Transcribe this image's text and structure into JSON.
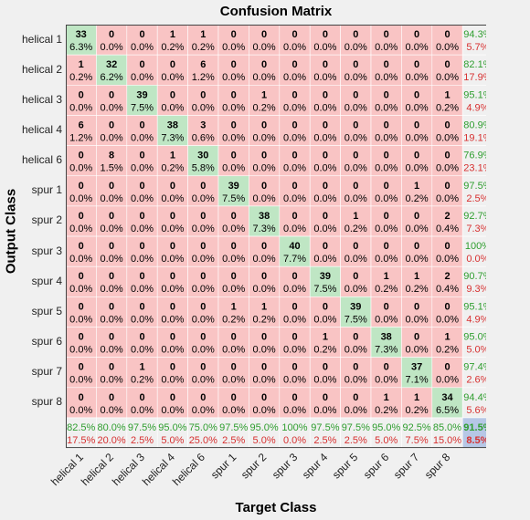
{
  "chart_data": {
    "type": "heatmap",
    "title": "Confusion Matrix",
    "xlabel": "Target Class",
    "ylabel": "Output Class",
    "classes": [
      "helical 1",
      "helical 2",
      "helical 3",
      "helical 4",
      "helical 6",
      "spur 1",
      "spur 2",
      "spur 3",
      "spur 4",
      "spur 5",
      "spur 6",
      "spur 7",
      "spur 8"
    ],
    "counts": [
      [
        33,
        0,
        0,
        1,
        1,
        0,
        0,
        0,
        0,
        0,
        0,
        0,
        0
      ],
      [
        1,
        32,
        0,
        0,
        6,
        0,
        0,
        0,
        0,
        0,
        0,
        0,
        0
      ],
      [
        0,
        0,
        39,
        0,
        0,
        0,
        1,
        0,
        0,
        0,
        0,
        0,
        1
      ],
      [
        6,
        0,
        0,
        38,
        3,
        0,
        0,
        0,
        0,
        0,
        0,
        0,
        0
      ],
      [
        0,
        8,
        0,
        1,
        30,
        0,
        0,
        0,
        0,
        0,
        0,
        0,
        0
      ],
      [
        0,
        0,
        0,
        0,
        0,
        39,
        0,
        0,
        0,
        0,
        0,
        1,
        0
      ],
      [
        0,
        0,
        0,
        0,
        0,
        0,
        38,
        0,
        0,
        1,
        0,
        0,
        2
      ],
      [
        0,
        0,
        0,
        0,
        0,
        0,
        0,
        40,
        0,
        0,
        0,
        0,
        0
      ],
      [
        0,
        0,
        0,
        0,
        0,
        0,
        0,
        0,
        39,
        0,
        1,
        1,
        2
      ],
      [
        0,
        0,
        0,
        0,
        0,
        1,
        1,
        0,
        0,
        39,
        0,
        0,
        0
      ],
      [
        0,
        0,
        0,
        0,
        0,
        0,
        0,
        0,
        1,
        0,
        38,
        0,
        1
      ],
      [
        0,
        0,
        1,
        0,
        0,
        0,
        0,
        0,
        0,
        0,
        0,
        37,
        0
      ],
      [
        0,
        0,
        0,
        0,
        0,
        0,
        0,
        0,
        0,
        0,
        1,
        1,
        34
      ]
    ],
    "percents": [
      [
        "6.3%",
        "0.0%",
        "0.0%",
        "0.2%",
        "0.2%",
        "0.0%",
        "0.0%",
        "0.0%",
        "0.0%",
        "0.0%",
        "0.0%",
        "0.0%",
        "0.0%"
      ],
      [
        "0.2%",
        "6.2%",
        "0.0%",
        "0.0%",
        "1.2%",
        "0.0%",
        "0.0%",
        "0.0%",
        "0.0%",
        "0.0%",
        "0.0%",
        "0.0%",
        "0.0%"
      ],
      [
        "0.0%",
        "0.0%",
        "7.5%",
        "0.0%",
        "0.0%",
        "0.0%",
        "0.2%",
        "0.0%",
        "0.0%",
        "0.0%",
        "0.0%",
        "0.0%",
        "0.2%"
      ],
      [
        "1.2%",
        "0.0%",
        "0.0%",
        "7.3%",
        "0.6%",
        "0.0%",
        "0.0%",
        "0.0%",
        "0.0%",
        "0.0%",
        "0.0%",
        "0.0%",
        "0.0%"
      ],
      [
        "0.0%",
        "1.5%",
        "0.0%",
        "0.2%",
        "5.8%",
        "0.0%",
        "0.0%",
        "0.0%",
        "0.0%",
        "0.0%",
        "0.0%",
        "0.0%",
        "0.0%"
      ],
      [
        "0.0%",
        "0.0%",
        "0.0%",
        "0.0%",
        "0.0%",
        "7.5%",
        "0.0%",
        "0.0%",
        "0.0%",
        "0.0%",
        "0.0%",
        "0.2%",
        "0.0%"
      ],
      [
        "0.0%",
        "0.0%",
        "0.0%",
        "0.0%",
        "0.0%",
        "0.0%",
        "7.3%",
        "0.0%",
        "0.0%",
        "0.2%",
        "0.0%",
        "0.0%",
        "0.4%"
      ],
      [
        "0.0%",
        "0.0%",
        "0.0%",
        "0.0%",
        "0.0%",
        "0.0%",
        "0.0%",
        "7.7%",
        "0.0%",
        "0.0%",
        "0.0%",
        "0.0%",
        "0.0%"
      ],
      [
        "0.0%",
        "0.0%",
        "0.0%",
        "0.0%",
        "0.0%",
        "0.0%",
        "0.0%",
        "0.0%",
        "7.5%",
        "0.0%",
        "0.2%",
        "0.2%",
        "0.4%"
      ],
      [
        "0.0%",
        "0.0%",
        "0.0%",
        "0.0%",
        "0.0%",
        "0.2%",
        "0.2%",
        "0.0%",
        "0.0%",
        "7.5%",
        "0.0%",
        "0.0%",
        "0.0%"
      ],
      [
        "0.0%",
        "0.0%",
        "0.0%",
        "0.0%",
        "0.0%",
        "0.0%",
        "0.0%",
        "0.0%",
        "0.2%",
        "0.0%",
        "7.3%",
        "0.0%",
        "0.2%"
      ],
      [
        "0.0%",
        "0.0%",
        "0.2%",
        "0.0%",
        "0.0%",
        "0.0%",
        "0.0%",
        "0.0%",
        "0.0%",
        "0.0%",
        "0.0%",
        "7.1%",
        "0.0%"
      ],
      [
        "0.0%",
        "0.0%",
        "0.0%",
        "0.0%",
        "0.0%",
        "0.0%",
        "0.0%",
        "0.0%",
        "0.0%",
        "0.0%",
        "0.2%",
        "0.2%",
        "6.5%"
      ]
    ],
    "row_summary": [
      [
        "94.3%",
        "5.7%"
      ],
      [
        "82.1%",
        "17.9%"
      ],
      [
        "95.1%",
        "4.9%"
      ],
      [
        "80.9%",
        "19.1%"
      ],
      [
        "76.9%",
        "23.1%"
      ],
      [
        "97.5%",
        "2.5%"
      ],
      [
        "92.7%",
        "7.3%"
      ],
      [
        "100%",
        "0.0%"
      ],
      [
        "90.7%",
        "9.3%"
      ],
      [
        "95.1%",
        "4.9%"
      ],
      [
        "95.0%",
        "5.0%"
      ],
      [
        "97.4%",
        "2.6%"
      ],
      [
        "94.4%",
        "5.6%"
      ]
    ],
    "col_summary": [
      [
        "82.5%",
        "17.5%"
      ],
      [
        "80.0%",
        "20.0%"
      ],
      [
        "97.5%",
        "2.5%"
      ],
      [
        "95.0%",
        "5.0%"
      ],
      [
        "75.0%",
        "25.0%"
      ],
      [
        "97.5%",
        "2.5%"
      ],
      [
        "95.0%",
        "5.0%"
      ],
      [
        "100%",
        "0.0%"
      ],
      [
        "97.5%",
        "2.5%"
      ],
      [
        "97.5%",
        "2.5%"
      ],
      [
        "95.0%",
        "5.0%"
      ],
      [
        "92.5%",
        "7.5%"
      ],
      [
        "85.0%",
        "15.0%"
      ]
    ],
    "overall": [
      "91.5%",
      "8.5%"
    ],
    "colors": {
      "correct": "#bfe6c4",
      "incorrect": "#f9c4c4",
      "summary": "#f0f0f0",
      "overall": "#b6c7e6",
      "good_text": "#2f9e2f",
      "bad_text": "#d73030",
      "text": "#000000"
    }
  }
}
